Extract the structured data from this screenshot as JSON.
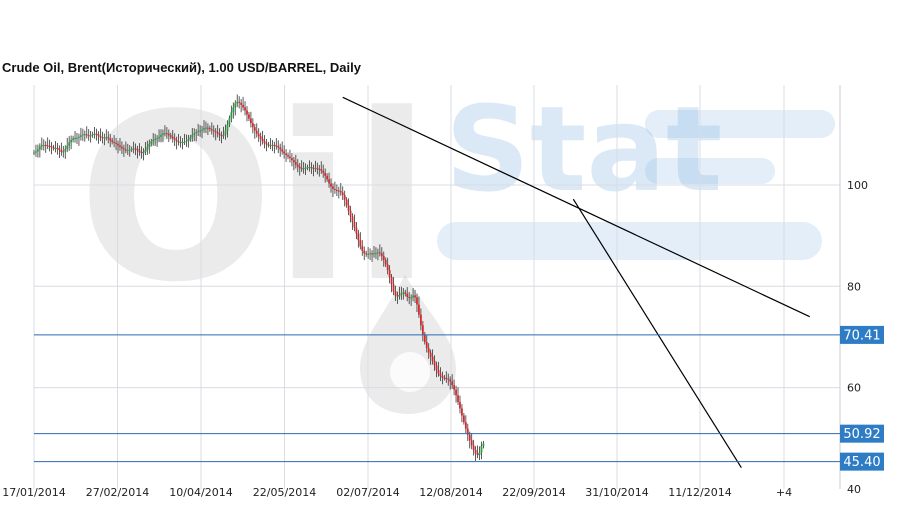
{
  "chart_data": {
    "type": "candlestick",
    "title": "Crude Oil, Brent(Исторический), 1.00 USD/BARREL, Daily",
    "x_tick_labels": [
      "17/01/2014",
      "27/02/2014",
      "10/04/2014",
      "22/05/2014",
      "02/07/2014",
      "12/08/2014",
      "22/09/2014",
      "31/10/2014",
      "11/12/2014",
      "+4"
    ],
    "y_tick_labels": [
      "100",
      "80",
      "60",
      "40"
    ],
    "ylim": [
      40,
      118
    ],
    "grid": true,
    "level_lines": [
      {
        "label": "70.41",
        "value": 70.41
      },
      {
        "label": "50.92",
        "value": 50.92
      },
      {
        "label": "45.40",
        "value": 45.4
      }
    ],
    "trend_lines": [
      {
        "name": "upper-trendline",
        "from": {
          "x": "2014-06-24",
          "y": 117.3
        },
        "to": {
          "x": "2015-02-18",
          "y": 74.0
        }
      },
      {
        "name": "steep-trendline",
        "from": {
          "x": "2014-10-20",
          "y": 97.2
        },
        "to": {
          "x": "2015-01-14",
          "y": 44.2
        }
      }
    ],
    "approx_close_series": {
      "x_start": "2014-01-17",
      "step_days": 1,
      "y": [
        106.4,
        106.6,
        107.0,
        107.6,
        107.9,
        107.9,
        107.8,
        107.7,
        107.6,
        107.4,
        107.3,
        107.3,
        107.2,
        106.9,
        106.5,
        106.6,
        107.1,
        107.7,
        108.4,
        108.9,
        109.2,
        109.3,
        109.3,
        109.5,
        109.8,
        110.0,
        110.0,
        109.8,
        109.7,
        109.8,
        110.0,
        110.1,
        110.0,
        109.7,
        109.4,
        109.3,
        109.4,
        109.4,
        109.2,
        108.8,
        108.5,
        108.3,
        108.1,
        107.8,
        107.5,
        107.2,
        107.0,
        106.9,
        106.9,
        107.0,
        107.1,
        107.2,
        107.1,
        106.8,
        106.5,
        106.3,
        106.5,
        106.9,
        107.5,
        108.1,
        108.6,
        108.9,
        109.1,
        109.2,
        109.5,
        109.9,
        110.2,
        110.2,
        110.1,
        109.8,
        109.5,
        109.2,
        108.9,
        108.6,
        108.5,
        108.5,
        108.5,
        108.5,
        108.7,
        109.0,
        109.4,
        109.9,
        110.2,
        110.4,
        110.6,
        110.7,
        110.9,
        111.2,
        111.3,
        111.2,
        111.0,
        110.8,
        110.6,
        110.4,
        110.1,
        109.8,
        109.7,
        109.9,
        110.7,
        111.9,
        113.2,
        114.3,
        115.3,
        116.1,
        116.4,
        116.2,
        115.8,
        115.3,
        114.7,
        113.9,
        113.1,
        112.2,
        111.4,
        110.7,
        110.1,
        109.6,
        109.1,
        108.6,
        108.2,
        108.0,
        107.9,
        107.9,
        107.9,
        107.8,
        107.7,
        107.4,
        107.0,
        106.6,
        106.2,
        105.9,
        105.6,
        105.3,
        104.9,
        104.5,
        104.0,
        103.6,
        103.3,
        103.2,
        103.3,
        103.4,
        103.5,
        103.5,
        103.4,
        103.3,
        103.3,
        103.2,
        103.1,
        102.8,
        102.4,
        101.8,
        101.1,
        100.3,
        99.7,
        99.2,
        99.0,
        98.9,
        98.8,
        98.5,
        98.0,
        97.1,
        96.0,
        94.9,
        93.8,
        92.7,
        91.6,
        90.4,
        89.1,
        87.9,
        87.0,
        86.5,
        86.3,
        86.4,
        86.5,
        86.4,
        86.5,
        86.6,
        86.7,
        86.5,
        86.0,
        85.2,
        84.3,
        83.2,
        81.8,
        80.4,
        79.0,
        78.2,
        78.0,
        78.3,
        78.7,
        78.8,
        78.5,
        77.9,
        77.7,
        77.8,
        78.2,
        77.8,
        76.4,
        74.4,
        72.3,
        70.5,
        69.0,
        67.8,
        66.9,
        66.1,
        65.3,
        64.4,
        63.5,
        62.8,
        62.3,
        62.0,
        61.9,
        61.8,
        61.6,
        61.2,
        60.5,
        59.6,
        58.5,
        57.2,
        55.9,
        54.5,
        53.2,
        51.9,
        50.7,
        49.6,
        48.6,
        47.7,
        47.0,
        46.7,
        47.2,
        48.5,
        49.0
      ]
    }
  },
  "watermark": {
    "logo_text": "Oil",
    "stat_text": "Stat"
  },
  "colors": {
    "up_candle": "#2a9d3f",
    "down_candle": "#d9262b",
    "level_line": "#2b6ab1",
    "level_box": "#2e7cc5",
    "trendline": "#000000",
    "grid": "#d8dce3",
    "watermark_gray": "#9a9a9a",
    "watermark_blue": "#7fb0e0"
  }
}
